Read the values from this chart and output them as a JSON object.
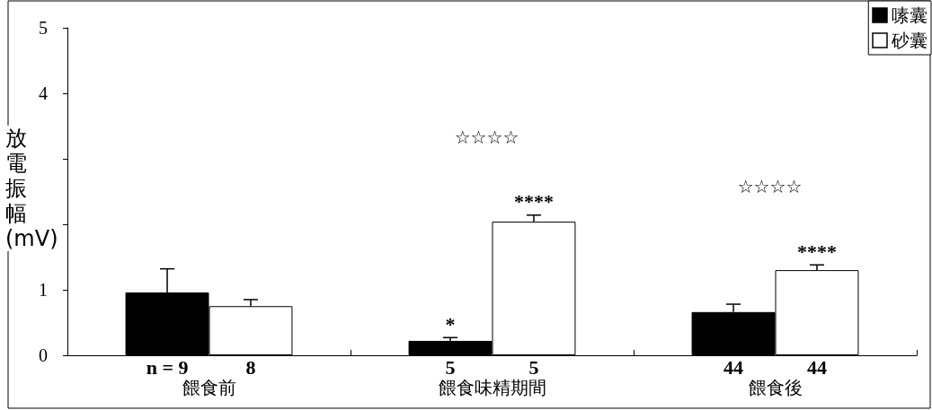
{
  "chart_data": {
    "type": "bar",
    "ylabel": "放電振幅 (mV)",
    "categories": [
      "餵食前",
      "餵食味精期間",
      "餵食後"
    ],
    "series": [
      {
        "name": "嗉囊",
        "color": "#000000",
        "values": [
          0.96,
          0.22,
          0.66
        ],
        "errors": [
          0.36,
          0.05,
          0.12
        ],
        "value_labels": [
          null,
          "*",
          null
        ]
      },
      {
        "name": "砂囊",
        "color": "#ffffff",
        "values": [
          0.75,
          2.04,
          1.3
        ],
        "errors": [
          0.1,
          0.1,
          0.08
        ],
        "value_labels": [
          null,
          "****",
          "****"
        ]
      }
    ],
    "ylim": [
      0,
      5
    ],
    "yticks": [
      0,
      1,
      {
        "value": 2,
        "label": null
      },
      {
        "value": 3,
        "label": null
      },
      4,
      5
    ],
    "annotations": [
      "☆☆☆☆",
      "☆☆☆☆",
      "n = 9",
      "8",
      "5",
      "5",
      "44",
      "44"
    ],
    "grid": false,
    "legend": "top right"
  }
}
